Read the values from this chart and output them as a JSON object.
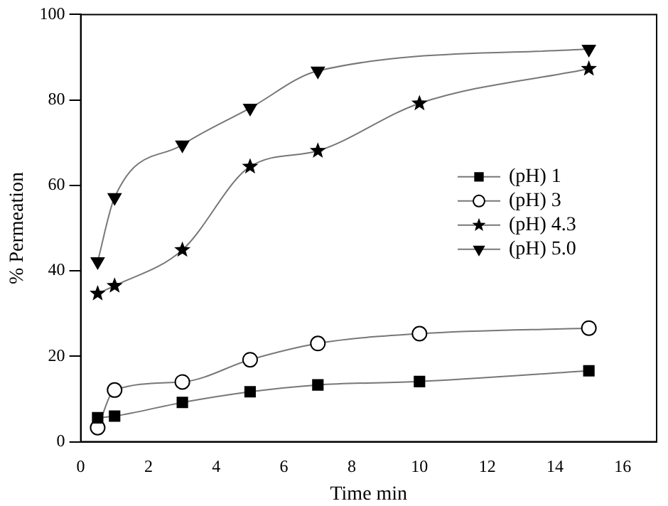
{
  "chart_data": {
    "type": "line",
    "xlabel": "Time min",
    "ylabel": "% Permeation",
    "x": [
      0.5,
      1,
      3,
      5,
      7,
      10,
      15
    ],
    "xlim": [
      0,
      17
    ],
    "xticks": [
      0,
      2,
      4,
      6,
      8,
      10,
      12,
      14,
      16
    ],
    "ylim": [
      0,
      100
    ],
    "yticks": [
      0,
      20,
      40,
      60,
      80,
      100
    ],
    "grid": false,
    "legend": "right",
    "series": [
      {
        "name": "(pH) 1",
        "color": "#000000",
        "marker": "square",
        "values": [
          5.6,
          6,
          9.2,
          11.7,
          13.3,
          14.1,
          16.6
        ]
      },
      {
        "name": "(pH) 3",
        "color": "#000000",
        "marker": "circle",
        "values": [
          3.3,
          12.1,
          14,
          19.2,
          23,
          25.3,
          26.6
        ]
      },
      {
        "name": "(pH) 4.3",
        "color": "#000000",
        "marker": "star",
        "values": [
          34.7,
          36.5,
          44.9,
          64.4,
          68.1,
          79.2,
          87.3
        ]
      },
      {
        "name": "(pH) 5.0",
        "color": "#000000",
        "marker": "triangle",
        "x": [
          0.5,
          1,
          3,
          5,
          7,
          15
        ],
        "values": [
          42.2,
          57.2,
          69.5,
          78.1,
          86.8,
          91.9
        ]
      }
    ]
  }
}
